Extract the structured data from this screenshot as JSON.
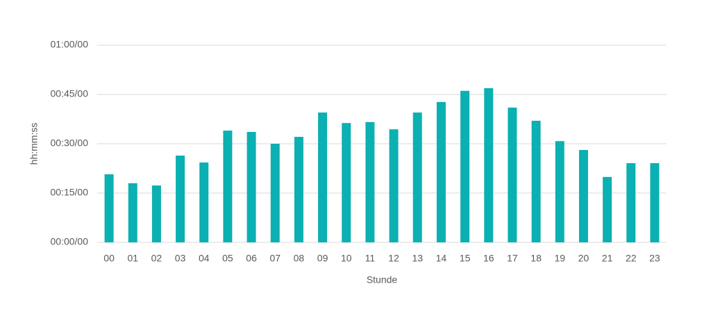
{
  "chart_data": {
    "type": "bar",
    "x_label": "Stunde",
    "y_label": "hh:mm:ss",
    "categories": [
      "00",
      "01",
      "02",
      "03",
      "04",
      "05",
      "06",
      "07",
      "08",
      "09",
      "10",
      "11",
      "12",
      "13",
      "14",
      "15",
      "16",
      "17",
      "18",
      "19",
      "20",
      "21",
      "22",
      "23"
    ],
    "values": [
      20.7,
      18.0,
      17.3,
      26.4,
      24.3,
      34.0,
      33.6,
      30.0,
      32.1,
      39.5,
      36.3,
      36.6,
      34.4,
      39.5,
      42.7,
      46.1,
      46.9,
      41.0,
      37.0,
      30.8,
      28.1,
      19.9,
      24.1,
      24.1
    ],
    "color": "#0bb0b3",
    "ylim": [
      0,
      60
    ],
    "yticks": [
      {
        "value": 0,
        "label": "00:00/00"
      },
      {
        "value": 15,
        "label": "00:15/00"
      },
      {
        "value": 30,
        "label": "00:30/00"
      },
      {
        "value": 45,
        "label": "00:45/00"
      },
      {
        "value": 60,
        "label": "01:00/00"
      }
    ],
    "grid": true
  }
}
